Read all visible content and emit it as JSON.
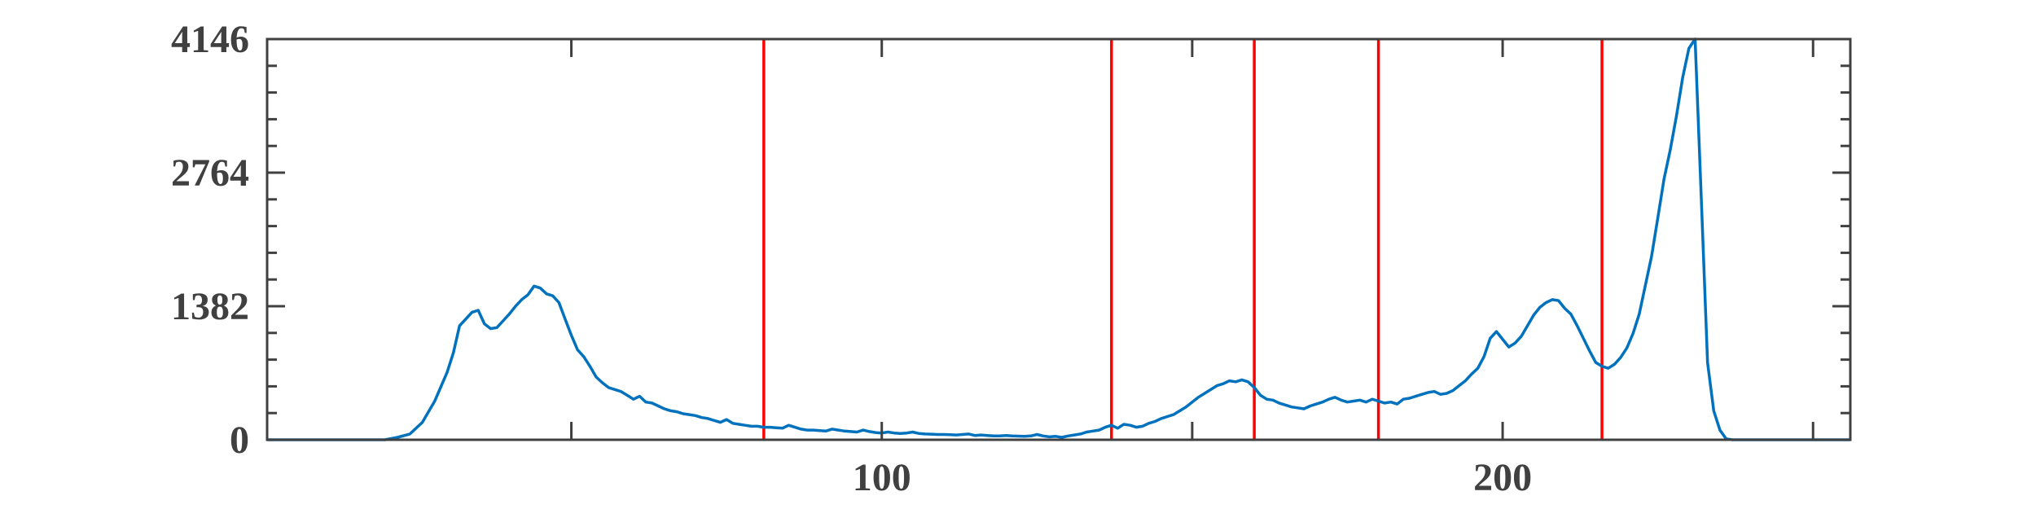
{
  "chart_data": {
    "type": "line",
    "title": "",
    "xlabel": "",
    "ylabel": "",
    "xlim": [
      1,
      256
    ],
    "ylim": [
      0,
      4146
    ],
    "grid": false,
    "x_ticks": [
      100,
      200
    ],
    "x_tick_labels": [
      "100",
      "200"
    ],
    "y_ticks": [
      0,
      1382,
      2764,
      4146
    ],
    "y_tick_labels": [
      "0",
      "1382",
      "2764",
      "4146"
    ],
    "series": [
      {
        "color": "#0072BD",
        "points": [
          [
            1,
            0
          ],
          [
            16,
            0
          ],
          [
            20,
            0
          ],
          [
            22,
            25
          ],
          [
            24,
            60
          ],
          [
            26,
            180
          ],
          [
            28,
            400
          ],
          [
            30,
            700
          ],
          [
            31,
            900
          ],
          [
            32,
            1180
          ],
          [
            33,
            1250
          ],
          [
            34,
            1320
          ],
          [
            35,
            1340
          ],
          [
            36,
            1200
          ],
          [
            37,
            1150
          ],
          [
            38,
            1160
          ],
          [
            39,
            1230
          ],
          [
            40,
            1300
          ],
          [
            41,
            1380
          ],
          [
            42,
            1450
          ],
          [
            43,
            1500
          ],
          [
            44,
            1590
          ],
          [
            45,
            1570
          ],
          [
            46,
            1510
          ],
          [
            47,
            1490
          ],
          [
            48,
            1420
          ],
          [
            49,
            1250
          ],
          [
            50,
            1080
          ],
          [
            51,
            930
          ],
          [
            52,
            860
          ],
          [
            53,
            760
          ],
          [
            54,
            650
          ],
          [
            55,
            590
          ],
          [
            56,
            540
          ],
          [
            57,
            520
          ],
          [
            58,
            500
          ],
          [
            59,
            460
          ],
          [
            60,
            420
          ],
          [
            61,
            450
          ],
          [
            62,
            390
          ],
          [
            63,
            380
          ],
          [
            64,
            350
          ],
          [
            65,
            320
          ],
          [
            66,
            300
          ],
          [
            67,
            290
          ],
          [
            68,
            270
          ],
          [
            69,
            260
          ],
          [
            70,
            250
          ],
          [
            71,
            230
          ],
          [
            72,
            220
          ],
          [
            73,
            200
          ],
          [
            74,
            180
          ],
          [
            75,
            210
          ],
          [
            76,
            170
          ],
          [
            77,
            160
          ],
          [
            78,
            150
          ],
          [
            79,
            140
          ],
          [
            80,
            140
          ],
          [
            81,
            130
          ],
          [
            82,
            130
          ],
          [
            83,
            125
          ],
          [
            84,
            120
          ],
          [
            85,
            150
          ],
          [
            86,
            130
          ],
          [
            87,
            110
          ],
          [
            88,
            100
          ],
          [
            89,
            100
          ],
          [
            90,
            95
          ],
          [
            91,
            90
          ],
          [
            92,
            110
          ],
          [
            93,
            100
          ],
          [
            94,
            90
          ],
          [
            95,
            85
          ],
          [
            96,
            80
          ],
          [
            97,
            100
          ],
          [
            98,
            85
          ],
          [
            99,
            75
          ],
          [
            100,
            70
          ],
          [
            101,
            80
          ],
          [
            102,
            70
          ],
          [
            103,
            65
          ],
          [
            104,
            70
          ],
          [
            105,
            80
          ],
          [
            106,
            65
          ],
          [
            107,
            60
          ],
          [
            108,
            58
          ],
          [
            109,
            55
          ],
          [
            110,
            55
          ],
          [
            111,
            52
          ],
          [
            112,
            50
          ],
          [
            113,
            55
          ],
          [
            114,
            60
          ],
          [
            115,
            45
          ],
          [
            116,
            50
          ],
          [
            117,
            45
          ],
          [
            118,
            40
          ],
          [
            119,
            40
          ],
          [
            120,
            45
          ],
          [
            121,
            40
          ],
          [
            122,
            38
          ],
          [
            123,
            35
          ],
          [
            124,
            40
          ],
          [
            125,
            55
          ],
          [
            126,
            40
          ],
          [
            127,
            30
          ],
          [
            128,
            35
          ],
          [
            129,
            25
          ],
          [
            130,
            40
          ],
          [
            131,
            50
          ],
          [
            132,
            60
          ],
          [
            133,
            80
          ],
          [
            134,
            90
          ],
          [
            135,
            100
          ],
          [
            136,
            130
          ],
          [
            137,
            150
          ],
          [
            138,
            120
          ],
          [
            139,
            160
          ],
          [
            140,
            150
          ],
          [
            141,
            130
          ],
          [
            142,
            140
          ],
          [
            143,
            170
          ],
          [
            144,
            190
          ],
          [
            145,
            220
          ],
          [
            146,
            240
          ],
          [
            147,
            260
          ],
          [
            148,
            300
          ],
          [
            149,
            340
          ],
          [
            150,
            390
          ],
          [
            151,
            440
          ],
          [
            152,
            480
          ],
          [
            153,
            520
          ],
          [
            154,
            560
          ],
          [
            155,
            580
          ],
          [
            156,
            610
          ],
          [
            157,
            600
          ],
          [
            158,
            620
          ],
          [
            159,
            600
          ],
          [
            160,
            540
          ],
          [
            161,
            460
          ],
          [
            162,
            420
          ],
          [
            163,
            410
          ],
          [
            164,
            380
          ],
          [
            165,
            360
          ],
          [
            166,
            340
          ],
          [
            167,
            330
          ],
          [
            168,
            320
          ],
          [
            169,
            350
          ],
          [
            170,
            370
          ],
          [
            171,
            390
          ],
          [
            172,
            420
          ],
          [
            173,
            440
          ],
          [
            174,
            410
          ],
          [
            175,
            390
          ],
          [
            176,
            400
          ],
          [
            177,
            410
          ],
          [
            178,
            390
          ],
          [
            179,
            420
          ],
          [
            180,
            400
          ],
          [
            181,
            380
          ],
          [
            182,
            390
          ],
          [
            183,
            370
          ],
          [
            184,
            420
          ],
          [
            185,
            430
          ],
          [
            186,
            450
          ],
          [
            187,
            470
          ],
          [
            188,
            490
          ],
          [
            189,
            500
          ],
          [
            190,
            470
          ],
          [
            191,
            480
          ],
          [
            192,
            510
          ],
          [
            193,
            560
          ],
          [
            194,
            610
          ],
          [
            195,
            680
          ],
          [
            196,
            740
          ],
          [
            197,
            860
          ],
          [
            198,
            1050
          ],
          [
            199,
            1120
          ],
          [
            200,
            1040
          ],
          [
            201,
            960
          ],
          [
            202,
            1000
          ],
          [
            203,
            1070
          ],
          [
            204,
            1180
          ],
          [
            205,
            1290
          ],
          [
            206,
            1370
          ],
          [
            207,
            1420
          ],
          [
            208,
            1450
          ],
          [
            209,
            1440
          ],
          [
            210,
            1360
          ],
          [
            211,
            1300
          ],
          [
            212,
            1180
          ],
          [
            213,
            1050
          ],
          [
            214,
            920
          ],
          [
            215,
            800
          ],
          [
            216,
            760
          ],
          [
            217,
            740
          ],
          [
            218,
            780
          ],
          [
            219,
            850
          ],
          [
            220,
            950
          ],
          [
            221,
            1100
          ],
          [
            222,
            1300
          ],
          [
            223,
            1600
          ],
          [
            224,
            1900
          ],
          [
            225,
            2300
          ],
          [
            226,
            2700
          ],
          [
            227,
            3000
          ],
          [
            228,
            3350
          ],
          [
            229,
            3750
          ],
          [
            230,
            4050
          ],
          [
            231,
            4146
          ],
          [
            232,
            2500
          ],
          [
            233,
            800
          ],
          [
            234,
            300
          ],
          [
            235,
            100
          ],
          [
            236,
            10
          ],
          [
            237,
            0
          ],
          [
            256,
            0
          ]
        ]
      }
    ],
    "vertical_lines": {
      "color": "#FF0000",
      "x": [
        81,
        137,
        160,
        180,
        216
      ]
    }
  }
}
